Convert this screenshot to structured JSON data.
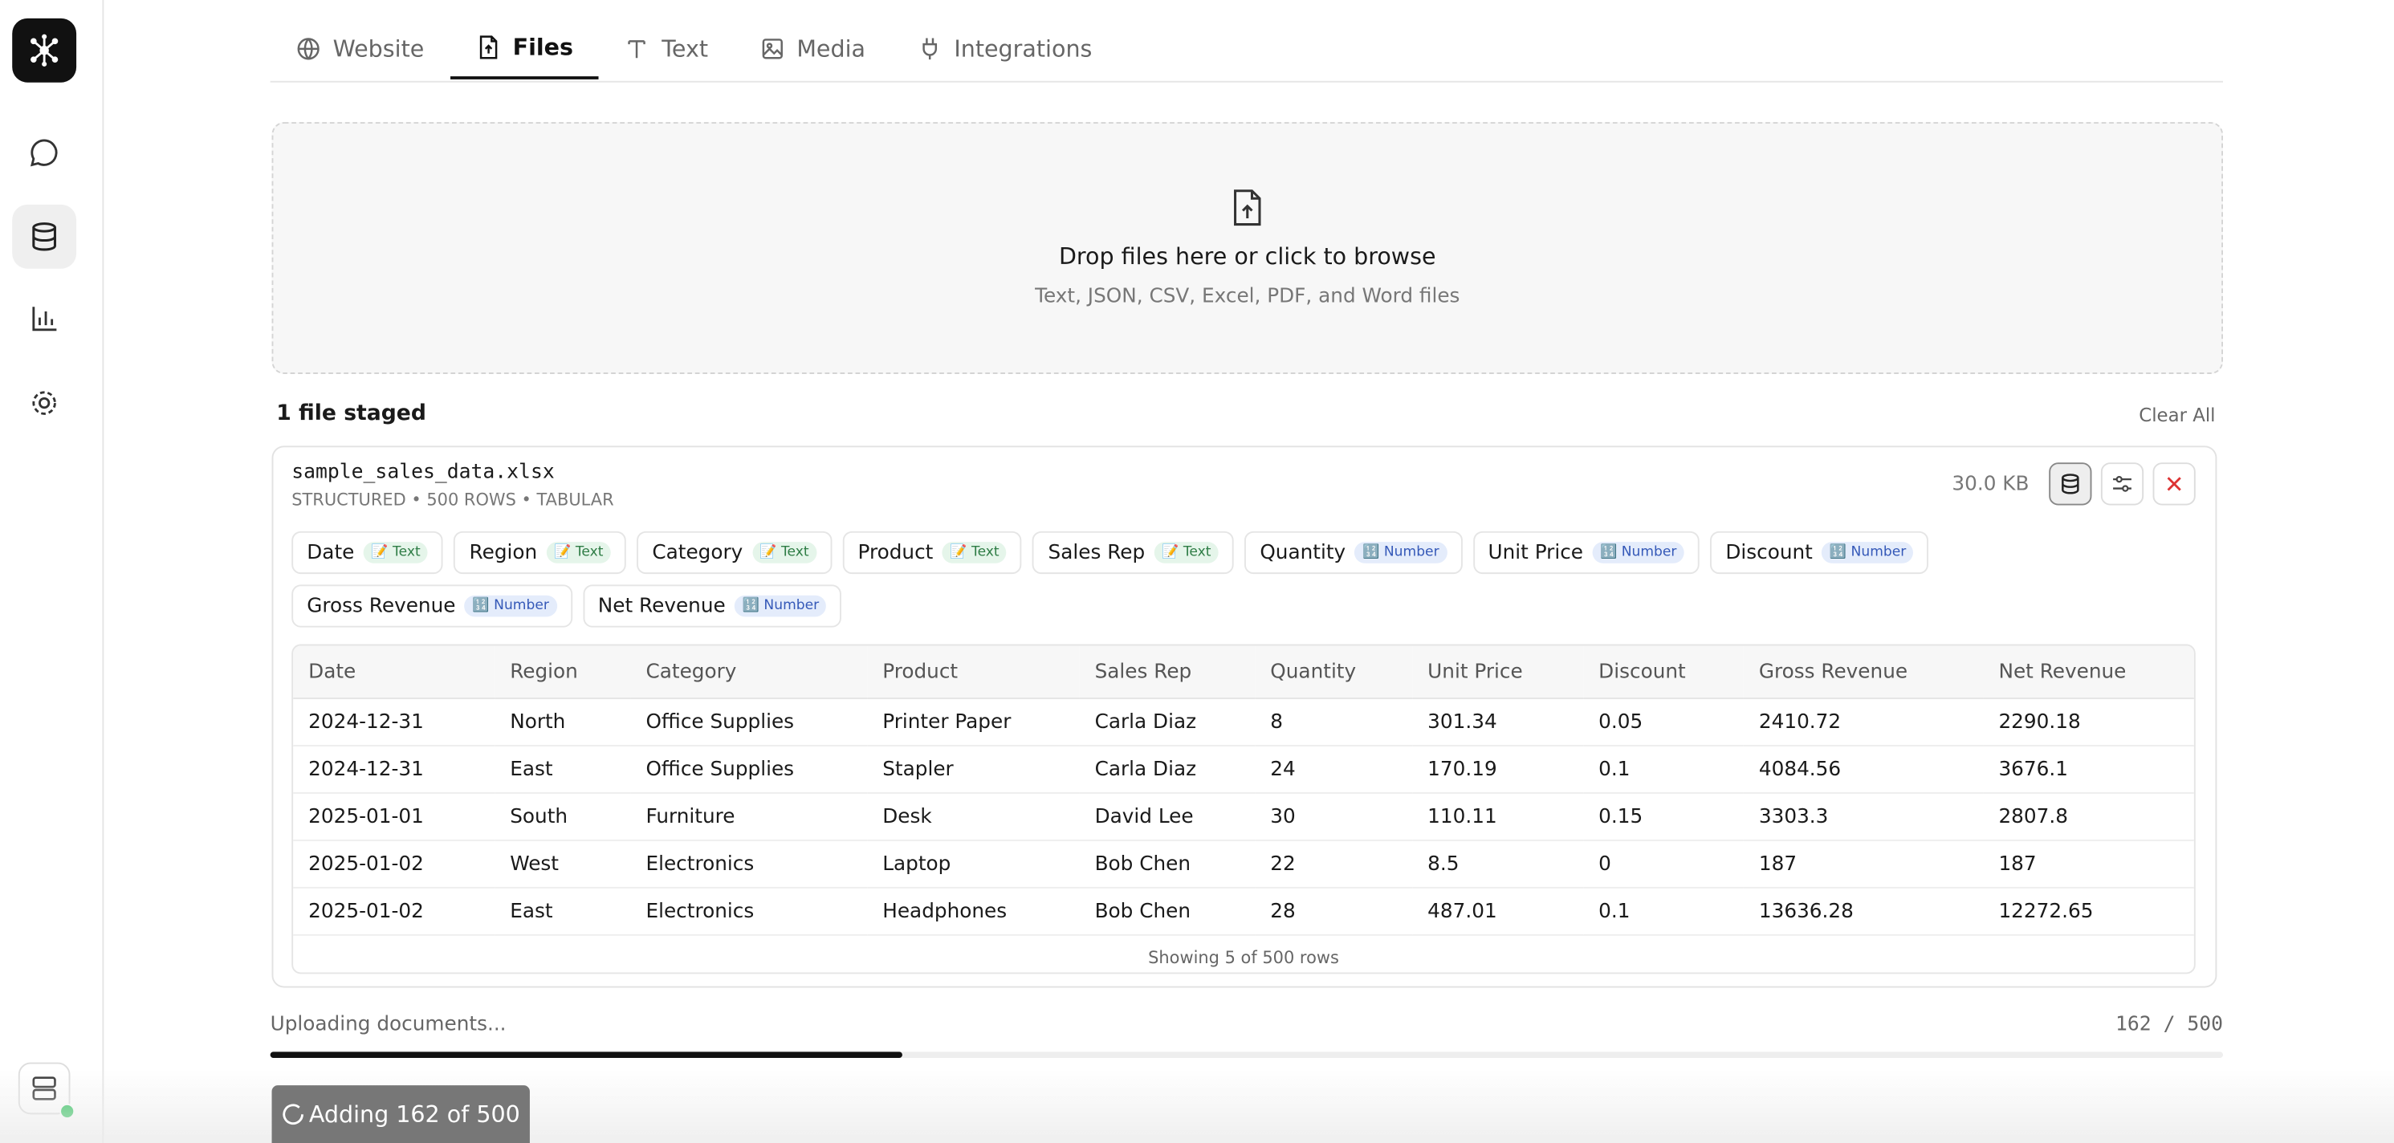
{
  "tabs": [
    {
      "label": "Website",
      "active": false
    },
    {
      "label": "Files",
      "active": true
    },
    {
      "label": "Text",
      "active": false
    },
    {
      "label": "Media",
      "active": false
    },
    {
      "label": "Integrations",
      "active": false
    }
  ],
  "dropzone": {
    "title": "Drop files here or click to browse",
    "subtitle": "Text, JSON, CSV, Excel, PDF, and Word files"
  },
  "staged": {
    "count_label": "1 file staged",
    "clear": "Clear All"
  },
  "file": {
    "name": "sample_sales_data.xlsx",
    "meta": "STRUCTURED • 500 ROWS • TABULAR",
    "size": "30.0 KB",
    "columns": [
      {
        "name": "Date",
        "type": "📝 Text",
        "badge_color": "green"
      },
      {
        "name": "Region",
        "type": "📝 Text",
        "badge_color": "green"
      },
      {
        "name": "Category",
        "type": "📝 Text",
        "badge_color": "green"
      },
      {
        "name": "Product",
        "type": "📝 Text",
        "badge_color": "green"
      },
      {
        "name": "Sales Rep",
        "type": "📝 Text",
        "badge_color": "green"
      },
      {
        "name": "Quantity",
        "type": "🔢 Number",
        "badge_color": "blue"
      },
      {
        "name": "Unit Price",
        "type": "🔢 Number",
        "badge_color": "blue"
      },
      {
        "name": "Discount",
        "type": "🔢 Number",
        "badge_color": "blue"
      },
      {
        "name": "Gross Revenue",
        "type": "🔢 Number",
        "badge_color": "blue"
      },
      {
        "name": "Net Revenue",
        "type": "🔢 Number",
        "badge_color": "blue"
      }
    ],
    "table": {
      "header": [
        "Date",
        "Region",
        "Category",
        "Product",
        "Sales Rep",
        "Quantity",
        "Unit Price",
        "Discount",
        "Gross Revenue",
        "Net Revenue"
      ],
      "rows": [
        [
          "2024-12-31",
          "North",
          "Office Supplies",
          "Printer Paper",
          "Carla Diaz",
          "8",
          "301.34",
          "0.05",
          "2410.72",
          "2290.18"
        ],
        [
          "2024-12-31",
          "East",
          "Office Supplies",
          "Stapler",
          "Carla Diaz",
          "24",
          "170.19",
          "0.1",
          "4084.56",
          "3676.1"
        ],
        [
          "2025-01-01",
          "South",
          "Furniture",
          "Desk",
          "David Lee",
          "30",
          "110.11",
          "0.15",
          "3303.3",
          "2807.8"
        ],
        [
          "2025-01-02",
          "West",
          "Electronics",
          "Laptop",
          "Bob Chen",
          "22",
          "8.5",
          "0",
          "187",
          "187"
        ],
        [
          "2025-01-02",
          "East",
          "Electronics",
          "Headphones",
          "Bob Chen",
          "28",
          "487.01",
          "0.1",
          "13636.28",
          "12272.65"
        ]
      ],
      "footer": "Showing 5 of 500 rows"
    }
  },
  "upload": {
    "label": "Uploading documents...",
    "count": "162 / 500",
    "done": 162,
    "total": 500,
    "button": "Adding 162 of 500"
  }
}
